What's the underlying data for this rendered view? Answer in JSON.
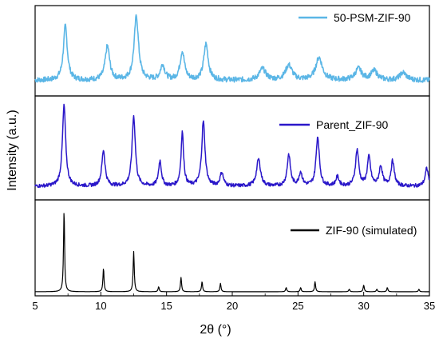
{
  "chart_data": {
    "type": "line",
    "xlabel": "2θ (°)",
    "ylabel": "Intensity (a.u.)",
    "xlim": [
      5,
      35
    ],
    "x_ticks": [
      5,
      10,
      15,
      20,
      25,
      30,
      35
    ],
    "x_tick_labels": [
      "5",
      "10",
      "15",
      "20",
      "25",
      "30",
      "35"
    ],
    "grid": false,
    "legend_position": "top-right",
    "series": [
      {
        "name": "50-PSM-ZIF-90",
        "color": "#5bb6e6",
        "baseline": 0.08,
        "peaks": [
          {
            "x": 7.3,
            "height": 0.72,
            "width": 0.18
          },
          {
            "x": 10.5,
            "height": 0.45,
            "width": 0.2
          },
          {
            "x": 12.7,
            "height": 0.85,
            "width": 0.2
          },
          {
            "x": 14.7,
            "height": 0.2,
            "width": 0.2
          },
          {
            "x": 16.2,
            "height": 0.38,
            "width": 0.2
          },
          {
            "x": 18.0,
            "height": 0.48,
            "width": 0.2
          },
          {
            "x": 22.3,
            "height": 0.15,
            "width": 0.3
          },
          {
            "x": 24.3,
            "height": 0.2,
            "width": 0.3
          },
          {
            "x": 26.6,
            "height": 0.3,
            "width": 0.3
          },
          {
            "x": 29.6,
            "height": 0.15,
            "width": 0.3
          },
          {
            "x": 30.8,
            "height": 0.12,
            "width": 0.3
          },
          {
            "x": 33.0,
            "height": 0.1,
            "width": 0.3
          }
        ]
      },
      {
        "name": "Parent_ZIF-90",
        "color": "#2a17c9",
        "baseline": 0.08,
        "peaks": [
          {
            "x": 7.2,
            "height": 0.9,
            "width": 0.15
          },
          {
            "x": 10.2,
            "height": 0.4,
            "width": 0.15
          },
          {
            "x": 12.5,
            "height": 0.78,
            "width": 0.15
          },
          {
            "x": 14.5,
            "height": 0.28,
            "width": 0.13
          },
          {
            "x": 16.2,
            "height": 0.6,
            "width": 0.12
          },
          {
            "x": 17.8,
            "height": 0.72,
            "width": 0.15
          },
          {
            "x": 19.2,
            "height": 0.15,
            "width": 0.15
          },
          {
            "x": 22.0,
            "height": 0.3,
            "width": 0.18
          },
          {
            "x": 24.3,
            "height": 0.35,
            "width": 0.15
          },
          {
            "x": 25.2,
            "height": 0.15,
            "width": 0.15
          },
          {
            "x": 26.5,
            "height": 0.55,
            "width": 0.15
          },
          {
            "x": 28.0,
            "height": 0.1,
            "width": 0.15
          },
          {
            "x": 29.5,
            "height": 0.4,
            "width": 0.15
          },
          {
            "x": 30.4,
            "height": 0.32,
            "width": 0.15
          },
          {
            "x": 31.3,
            "height": 0.22,
            "width": 0.15
          },
          {
            "x": 32.2,
            "height": 0.28,
            "width": 0.15
          },
          {
            "x": 34.8,
            "height": 0.2,
            "width": 0.15
          }
        ]
      },
      {
        "name": "ZIF-90 (simulated)",
        "color": "#000000",
        "baseline": 0.02,
        "peaks": [
          {
            "x": 7.2,
            "height": 0.97,
            "width": 0.05
          },
          {
            "x": 10.2,
            "height": 0.28,
            "width": 0.05
          },
          {
            "x": 12.5,
            "height": 0.48,
            "width": 0.05
          },
          {
            "x": 14.4,
            "height": 0.06,
            "width": 0.05
          },
          {
            "x": 16.1,
            "height": 0.17,
            "width": 0.05
          },
          {
            "x": 17.7,
            "height": 0.12,
            "width": 0.05
          },
          {
            "x": 19.1,
            "height": 0.1,
            "width": 0.05
          },
          {
            "x": 24.1,
            "height": 0.05,
            "width": 0.05
          },
          {
            "x": 25.2,
            "height": 0.05,
            "width": 0.05
          },
          {
            "x": 26.3,
            "height": 0.12,
            "width": 0.05
          },
          {
            "x": 28.9,
            "height": 0.03,
            "width": 0.05
          },
          {
            "x": 30.0,
            "height": 0.08,
            "width": 0.05
          },
          {
            "x": 31.0,
            "height": 0.03,
            "width": 0.05
          },
          {
            "x": 31.8,
            "height": 0.05,
            "width": 0.05
          },
          {
            "x": 34.2,
            "height": 0.03,
            "width": 0.05
          }
        ]
      }
    ]
  }
}
